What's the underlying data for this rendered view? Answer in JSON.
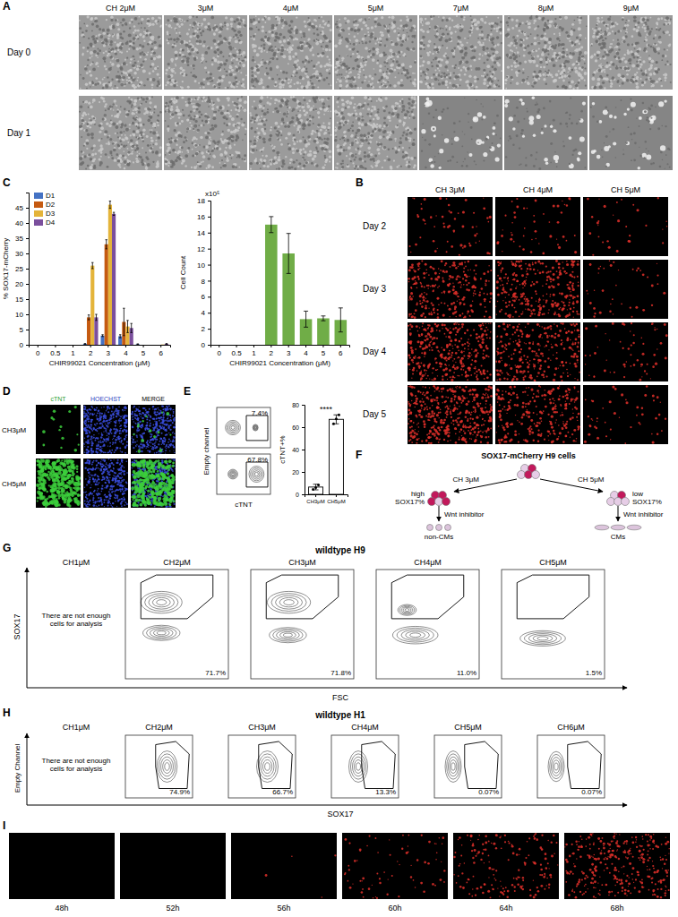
{
  "chart_data": [
    {
      "type": "bar",
      "x_label": "CHIR99021 Concentration (μM)",
      "y_label": "% SOX17-mCherry",
      "categories": [
        "0",
        "0.5",
        "1",
        "2",
        "3",
        "4",
        "5",
        "6"
      ],
      "series": [
        {
          "name": "D1",
          "color": "#4472c4",
          "values": [
            0,
            0,
            0,
            0.3,
            3,
            2.8,
            0.2,
            0
          ],
          "errors": [
            0,
            0,
            0,
            0.1,
            0.3,
            0.5,
            0.1,
            0
          ]
        },
        {
          "name": "D2",
          "color": "#c55a11",
          "values": [
            0,
            0,
            0,
            9,
            33,
            7.5,
            0,
            0
          ],
          "errors": [
            0,
            0,
            0,
            0.8,
            1.5,
            4.5,
            0,
            0
          ]
        },
        {
          "name": "D3",
          "color": "#e4b43a",
          "values": [
            0,
            0,
            0,
            26,
            46,
            6,
            0,
            0.1
          ],
          "errors": [
            0,
            0,
            0,
            1,
            1.2,
            2,
            0,
            0
          ]
        },
        {
          "name": "D4",
          "color": "#7b4f9d",
          "values": [
            0,
            0,
            0,
            9,
            43,
            5.5,
            0,
            0.3
          ],
          "errors": [
            0,
            0,
            0,
            1,
            0.5,
            1.5,
            0,
            0.1
          ]
        }
      ],
      "ylim": [
        0,
        50
      ],
      "yticks": [
        0,
        5,
        10,
        15,
        20,
        25,
        30,
        35,
        40,
        45
      ],
      "legend": "top-left"
    },
    {
      "type": "bar",
      "x_label": "CHIR99021 Concentration (μM)",
      "y_label": "Cell Count",
      "annotations": [
        "x10⁵"
      ],
      "categories": [
        "0",
        "0.5",
        "1",
        "2",
        "3",
        "4",
        "5",
        "6"
      ],
      "values": [
        0,
        0,
        0,
        15,
        11.4,
        3.2,
        3.3,
        3.1
      ],
      "errors": [
        0,
        0,
        0,
        1,
        2.5,
        1,
        0.3,
        1.5
      ],
      "color": "#70ad47",
      "ylim": [
        0,
        18
      ],
      "yticks": [
        0,
        2,
        4,
        6,
        8,
        10,
        12,
        14,
        16,
        18
      ]
    },
    {
      "type": "bar",
      "y_label": "cTNT+%",
      "annotations": [
        "****"
      ],
      "categories": [
        "CH3μM",
        "CH5μM"
      ],
      "values": [
        6.5,
        67
      ],
      "errors": [
        2.5,
        4
      ],
      "points": [
        [
          4.5,
          6,
          8.5
        ],
        [
          63,
          67.5,
          71
        ]
      ],
      "color": "#ffffff",
      "ylim": [
        0,
        80
      ],
      "yticks": [
        0,
        20,
        40,
        60,
        80
      ]
    }
  ],
  "panels": {
    "a": {
      "label": "A",
      "columns": [
        "CH 2μM",
        "3μM",
        "4μM",
        "5μM",
        "7μM",
        "8μM",
        "9μM"
      ],
      "rows": [
        "Day 0",
        "Day 1"
      ]
    },
    "b": {
      "label": "B",
      "columns": [
        "CH 3μM",
        "CH 4μM",
        "CH 5μM"
      ],
      "rows": [
        "Day 2",
        "Day 3",
        "Day 4",
        "Day 5"
      ]
    },
    "c": {
      "label": "C"
    },
    "d": {
      "label": "D",
      "columns": [
        "cTNT",
        "HOECHST",
        "MERGE"
      ],
      "rows": [
        "CH3μM",
        "CH5μM"
      ]
    },
    "e": {
      "label": "E",
      "y_label": "Empty channel",
      "x_label": "cTNT",
      "gates": [
        "7.4%",
        "67.8%"
      ]
    },
    "f": {
      "label": "F",
      "top": "SOX17-mCherry H9 cells",
      "left_arrow": "CH 3μM",
      "right_arrow": "CH 5μM",
      "left_state": "high SOX17%",
      "right_state": "low SOX17%",
      "treatments": [
        "Wnt inhibitor",
        "Wnt inhibitor"
      ],
      "left_outcome": "non-CMs",
      "right_outcome": "CMs"
    },
    "g": {
      "label": "G",
      "title": "wildtype H9",
      "y_label": "SOX17",
      "x_label": "FSC",
      "columns": [
        "CH1μM",
        "CH2μM",
        "CH3μM",
        "CH4μM",
        "CH5μM"
      ],
      "note": "There are not enough cells for analysis",
      "gates": [
        null,
        "71.7%",
        "71.8%",
        "11.0%",
        "1.5%"
      ]
    },
    "h": {
      "label": "H",
      "title": "wildtype H1",
      "y_label": "Empty Channel",
      "x_label": "SOX17",
      "columns": [
        "CH1μM",
        "CH2μM",
        "CH3μM",
        "CH4μM",
        "CH5μM",
        "CH6μM"
      ],
      "note": "There are not enough cells for analysis",
      "gates": [
        null,
        "74.9%",
        "66.7%",
        "13.3%",
        "0.07%",
        "0.07%"
      ]
    },
    "i": {
      "label": "I",
      "times": [
        "48h",
        "52h",
        "56h",
        "60h",
        "64h",
        "68h"
      ]
    }
  }
}
